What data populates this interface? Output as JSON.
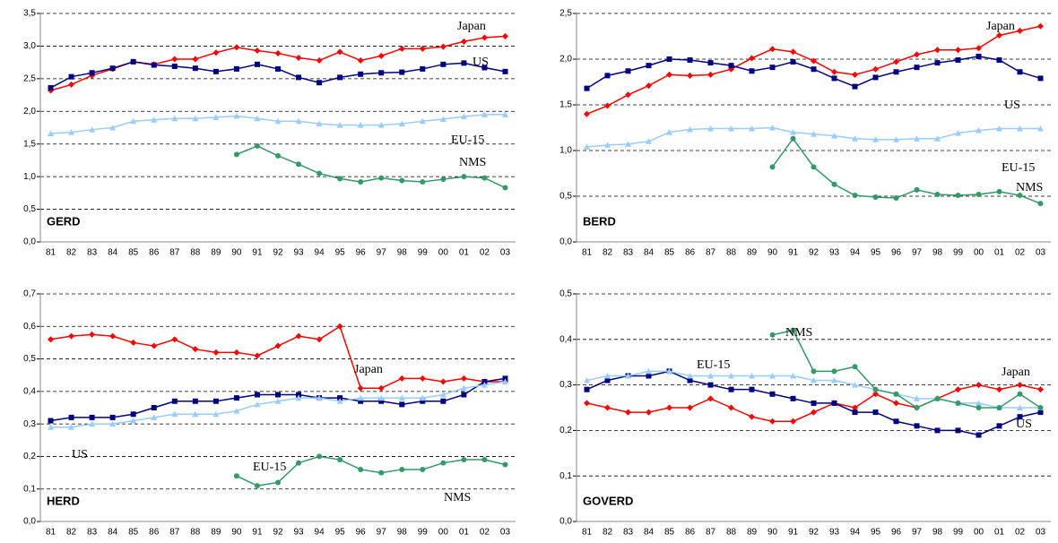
{
  "chart_data": [
    {
      "type": "line",
      "title": "GERD",
      "categories": [
        "81",
        "82",
        "83",
        "84",
        "85",
        "86",
        "87",
        "88",
        "89",
        "90",
        "91",
        "92",
        "93",
        "94",
        "95",
        "96",
        "97",
        "98",
        "99",
        "00",
        "01",
        "02",
        "03"
      ],
      "ylim": [
        0,
        3.5
      ],
      "yticks": [
        {
          "value": 0,
          "label": "0,0"
        },
        {
          "value": 0.5,
          "label": "0,5"
        },
        {
          "value": 1,
          "label": "1,0"
        },
        {
          "value": 1.5,
          "label": "1,5"
        },
        {
          "value": 2,
          "label": "2,0"
        },
        {
          "value": 2.5,
          "label": "2,5"
        },
        {
          "value": 3,
          "label": "3,0"
        },
        {
          "value": 3.5,
          "label": "3,5"
        }
      ],
      "grid": true,
      "series": [
        {
          "name": "Japan",
          "color": "#ff0000",
          "values": [
            2.32,
            2.41,
            2.55,
            2.65,
            2.76,
            2.72,
            2.8,
            2.8,
            2.9,
            2.98,
            2.93,
            2.89,
            2.82,
            2.78,
            2.91,
            2.78,
            2.85,
            2.96,
            2.96,
            2.99,
            3.07,
            3.13,
            3.15
          ]
        },
        {
          "name": "US",
          "color": "#000080",
          "values": [
            2.36,
            2.53,
            2.59,
            2.66,
            2.76,
            2.71,
            2.69,
            2.66,
            2.61,
            2.65,
            2.72,
            2.65,
            2.52,
            2.44,
            2.52,
            2.57,
            2.59,
            2.6,
            2.65,
            2.72,
            2.74,
            2.67,
            2.61
          ]
        },
        {
          "name": "EU-15",
          "color": "#99ccff",
          "values": [
            1.66,
            1.68,
            1.72,
            1.75,
            1.85,
            1.87,
            1.89,
            1.89,
            1.91,
            1.93,
            1.89,
            1.85,
            1.85,
            1.81,
            1.79,
            1.79,
            1.79,
            1.81,
            1.85,
            1.88,
            1.92,
            1.95,
            1.95
          ]
        },
        {
          "name": "NMS",
          "color": "#339966",
          "values": [
            null,
            null,
            null,
            null,
            null,
            null,
            null,
            null,
            null,
            1.34,
            1.47,
            1.32,
            1.19,
            1.05,
            0.97,
            0.92,
            0.98,
            0.94,
            0.92,
            0.96,
            1.0,
            0.98,
            0.83
          ]
        }
      ]
    },
    {
      "type": "line",
      "title": "BERD",
      "categories": [
        "81",
        "82",
        "83",
        "84",
        "85",
        "86",
        "87",
        "88",
        "89",
        "90",
        "91",
        "92",
        "93",
        "94",
        "95",
        "96",
        "97",
        "98",
        "99",
        "00",
        "01",
        "02",
        "03"
      ],
      "ylim": [
        0,
        2.5
      ],
      "yticks": [
        {
          "value": 0,
          "label": "0,0"
        },
        {
          "value": 0.5,
          "label": "0,5"
        },
        {
          "value": 1,
          "label": "1,0"
        },
        {
          "value": 1.5,
          "label": "1,5"
        },
        {
          "value": 2,
          "label": "2,0"
        },
        {
          "value": 2.5,
          "label": "2,5"
        }
      ],
      "grid": true,
      "series": [
        {
          "name": "Japan",
          "color": "#ff0000",
          "values": [
            1.4,
            1.49,
            1.61,
            1.71,
            1.83,
            1.82,
            1.83,
            1.89,
            2.01,
            2.11,
            2.08,
            1.98,
            1.86,
            1.83,
            1.89,
            1.97,
            2.05,
            2.1,
            2.1,
            2.12,
            2.26,
            2.31,
            2.36
          ]
        },
        {
          "name": "US",
          "color": "#000080",
          "values": [
            1.68,
            1.82,
            1.87,
            1.93,
            2.0,
            1.99,
            1.96,
            1.93,
            1.87,
            1.91,
            1.97,
            1.89,
            1.79,
            1.7,
            1.8,
            1.86,
            1.91,
            1.96,
            1.99,
            2.03,
            1.99,
            1.86,
            1.79
          ]
        },
        {
          "name": "EU-15",
          "color": "#99ccff",
          "values": [
            1.04,
            1.06,
            1.07,
            1.1,
            1.2,
            1.23,
            1.24,
            1.24,
            1.24,
            1.25,
            1.2,
            1.18,
            1.16,
            1.13,
            1.12,
            1.12,
            1.13,
            1.13,
            1.19,
            1.22,
            1.24,
            1.24,
            1.24
          ]
        },
        {
          "name": "NMS",
          "color": "#339966",
          "values": [
            null,
            null,
            null,
            null,
            null,
            null,
            null,
            null,
            null,
            0.82,
            1.13,
            0.82,
            0.63,
            0.51,
            0.49,
            0.48,
            0.57,
            0.52,
            0.51,
            0.52,
            0.55,
            0.51,
            0.42
          ]
        }
      ]
    },
    {
      "type": "line",
      "title": "HERD",
      "categories": [
        "81",
        "82",
        "83",
        "84",
        "85",
        "86",
        "87",
        "88",
        "89",
        "90",
        "91",
        "92",
        "93",
        "94",
        "95",
        "96",
        "97",
        "98",
        "99",
        "00",
        "01",
        "02",
        "03"
      ],
      "ylim": [
        0,
        0.7
      ],
      "yticks": [
        {
          "value": 0,
          "label": "0,0"
        },
        {
          "value": 0.1,
          "label": "0,1"
        },
        {
          "value": 0.2,
          "label": "0,2"
        },
        {
          "value": 0.3,
          "label": "0,3"
        },
        {
          "value": 0.4,
          "label": "0,4"
        },
        {
          "value": 0.5,
          "label": "0,5"
        },
        {
          "value": 0.6,
          "label": "0,6"
        },
        {
          "value": 0.7,
          "label": "0,7"
        }
      ],
      "grid": true,
      "series": [
        {
          "name": "Japan",
          "color": "#ff0000",
          "values": [
            0.56,
            0.57,
            0.575,
            0.57,
            0.55,
            0.54,
            0.56,
            0.53,
            0.52,
            0.52,
            0.51,
            0.54,
            0.57,
            0.56,
            0.6,
            0.41,
            0.41,
            0.44,
            0.44,
            0.43,
            0.44,
            0.43,
            0.43
          ]
        },
        {
          "name": "US",
          "color": "#000080",
          "values": [
            0.31,
            0.32,
            0.32,
            0.32,
            0.33,
            0.35,
            0.37,
            0.37,
            0.37,
            0.38,
            0.39,
            0.39,
            0.39,
            0.38,
            0.38,
            0.37,
            0.37,
            0.36,
            0.37,
            0.37,
            0.39,
            0.43,
            0.44
          ]
        },
        {
          "name": "EU-15",
          "color": "#99ccff",
          "values": [
            0.29,
            0.29,
            0.3,
            0.3,
            0.31,
            0.32,
            0.33,
            0.33,
            0.33,
            0.34,
            0.36,
            0.37,
            0.38,
            0.38,
            0.37,
            0.38,
            0.38,
            0.38,
            0.38,
            0.39,
            0.41,
            0.42,
            0.43
          ]
        },
        {
          "name": "NMS",
          "color": "#339966",
          "values": [
            null,
            null,
            null,
            null,
            null,
            null,
            null,
            null,
            null,
            0.14,
            0.11,
            0.12,
            0.18,
            0.2,
            0.19,
            0.16,
            0.15,
            0.16,
            0.16,
            0.18,
            0.19,
            0.19,
            0.175
          ]
        }
      ]
    },
    {
      "type": "line",
      "title": "GOVERD",
      "categories": [
        "81",
        "82",
        "83",
        "84",
        "85",
        "86",
        "87",
        "88",
        "89",
        "90",
        "91",
        "92",
        "93",
        "94",
        "95",
        "96",
        "97",
        "98",
        "99",
        "00",
        "01",
        "02",
        "03"
      ],
      "ylim": [
        0,
        0.5
      ],
      "yticks": [
        {
          "value": 0,
          "label": "0,0"
        },
        {
          "value": 0.1,
          "label": "0,1"
        },
        {
          "value": 0.2,
          "label": "0,2"
        },
        {
          "value": 0.3,
          "label": "0,3"
        },
        {
          "value": 0.4,
          "label": "0,4"
        },
        {
          "value": 0.5,
          "label": "0,5"
        }
      ],
      "grid": true,
      "series": [
        {
          "name": "Japan",
          "color": "#ff0000",
          "values": [
            0.26,
            0.25,
            0.24,
            0.24,
            0.25,
            0.25,
            0.27,
            0.25,
            0.23,
            0.22,
            0.22,
            0.24,
            0.26,
            0.25,
            0.28,
            0.26,
            0.25,
            0.27,
            0.29,
            0.3,
            0.29,
            0.3,
            0.29
          ]
        },
        {
          "name": "US",
          "color": "#000080",
          "values": [
            0.29,
            0.31,
            0.32,
            0.32,
            0.33,
            0.31,
            0.3,
            0.29,
            0.29,
            0.28,
            0.27,
            0.26,
            0.26,
            0.24,
            0.24,
            0.22,
            0.21,
            0.2,
            0.2,
            0.19,
            0.21,
            0.23,
            0.24
          ]
        },
        {
          "name": "EU-15",
          "color": "#99ccff",
          "values": [
            0.31,
            0.32,
            0.32,
            0.33,
            0.33,
            0.32,
            0.32,
            0.32,
            0.32,
            0.32,
            0.32,
            0.31,
            0.31,
            0.3,
            0.29,
            0.28,
            0.27,
            0.27,
            0.26,
            0.26,
            0.25,
            0.25,
            0.25
          ]
        },
        {
          "name": "NMS",
          "color": "#339966",
          "values": [
            null,
            null,
            null,
            null,
            null,
            null,
            null,
            null,
            null,
            0.41,
            0.42,
            0.33,
            0.33,
            0.34,
            0.29,
            0.28,
            0.25,
            0.27,
            0.26,
            0.25,
            0.25,
            0.28,
            0.25
          ]
        }
      ]
    }
  ]
}
